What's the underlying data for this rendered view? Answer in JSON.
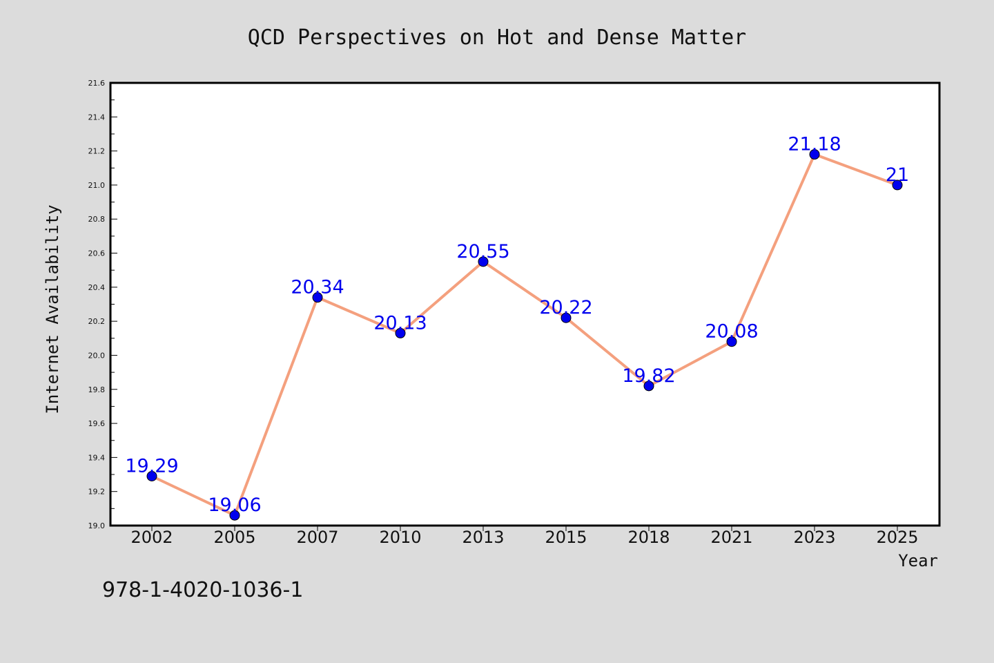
{
  "chart_data": {
    "type": "line",
    "title": "QCD Perspectives on Hot and Dense Matter",
    "xlabel": "Year",
    "ylabel": "Internet Availability",
    "categories": [
      "2002",
      "2005",
      "2007",
      "2010",
      "2013",
      "2015",
      "2018",
      "2021",
      "2023",
      "2025"
    ],
    "values": [
      19.29,
      19.06,
      20.34,
      20.13,
      20.55,
      20.22,
      19.82,
      20.08,
      21.18,
      21
    ],
    "data_labels": [
      "19.29",
      "19.06",
      "20.34",
      "20.13",
      "20.55",
      "20.22",
      "19.82",
      "20.08",
      "21.18",
      "21"
    ],
    "ylim": [
      19.0,
      21.6
    ],
    "yticks": [
      "19.0",
      "19.2",
      "19.4",
      "19.6",
      "19.8",
      "20.0",
      "20.2",
      "20.4",
      "20.6",
      "20.8",
      "21.0",
      "21.2",
      "21.4",
      "21.6"
    ],
    "grid": false,
    "legend": "none",
    "colors": {
      "line": "#f4a07e",
      "marker": "#0000ee",
      "data_label": "#0000ee",
      "plot_background": "#ffffff",
      "page_background": "#dcdcdc"
    }
  },
  "footer": {
    "isbn": "978-1-4020-1036-1"
  }
}
